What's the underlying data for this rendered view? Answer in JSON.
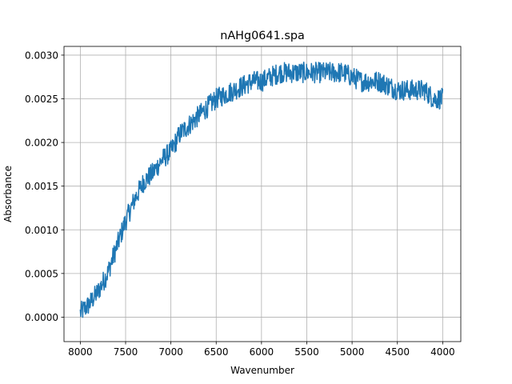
{
  "chart_data": {
    "type": "line",
    "title": "nAHg0641.spa",
    "xlabel": "Wavenumber",
    "ylabel": "Absorbance",
    "xlim": [
      8180,
      3800
    ],
    "ylim": [
      -0.00028,
      0.0031
    ],
    "x_reversed": true,
    "grid": true,
    "xticks": [
      8000,
      7500,
      7000,
      6500,
      6000,
      5500,
      5000,
      4500,
      4000
    ],
    "xtick_labels": [
      "8000",
      "7500",
      "7000",
      "6500",
      "6000",
      "5500",
      "5000",
      "4500",
      "4000"
    ],
    "yticks": [
      0.0,
      0.0005,
      0.001,
      0.0015,
      0.002,
      0.0025,
      0.003
    ],
    "ytick_labels": [
      "0.0000",
      "0.0005",
      "0.0010",
      "0.0015",
      "0.0020",
      "0.0025",
      "0.0030"
    ],
    "series": [
      {
        "color": "#1f77b4",
        "noise": 0.00012,
        "x": [
          8000,
          7900,
          7800,
          7700,
          7600,
          7500,
          7400,
          7300,
          7200,
          7100,
          7000,
          6900,
          6800,
          6700,
          6600,
          6500,
          6400,
          6300,
          6200,
          6100,
          6000,
          5900,
          5800,
          5700,
          5600,
          5500,
          5400,
          5300,
          5200,
          5100,
          5000,
          4900,
          4800,
          4700,
          4600,
          4500,
          4400,
          4300,
          4200,
          4100,
          4000
        ],
        "y": [
          5e-05,
          0.00015,
          0.0003,
          0.0005,
          0.0008,
          0.0011,
          0.00135,
          0.00155,
          0.00165,
          0.0018,
          0.0019,
          0.0021,
          0.0022,
          0.0023,
          0.0024,
          0.0025,
          0.00255,
          0.0026,
          0.00265,
          0.0027,
          0.0027,
          0.00275,
          0.0028,
          0.0028,
          0.0028,
          0.0028,
          0.0028,
          0.0028,
          0.0028,
          0.0028,
          0.00275,
          0.0027,
          0.0027,
          0.0027,
          0.00265,
          0.0026,
          0.0026,
          0.0026,
          0.0026,
          0.0025,
          0.0025
        ]
      }
    ]
  }
}
